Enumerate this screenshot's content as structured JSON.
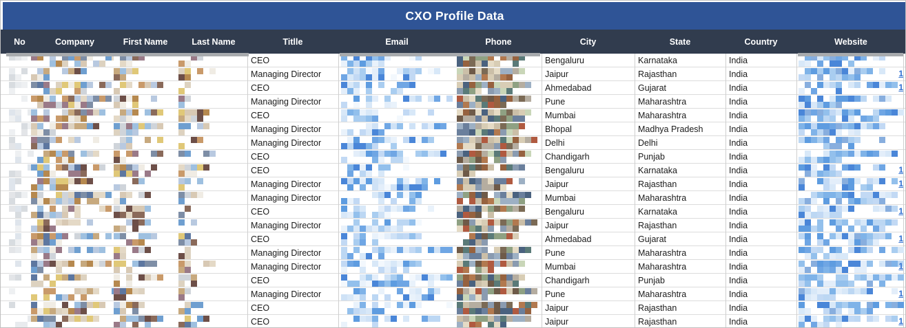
{
  "banner": {
    "title": "CXO Profile Data"
  },
  "theme": {
    "banner_bg": "#2f5496",
    "header_bg": "#313c4e",
    "header_text": "#ffffff",
    "grid_line": "#dcdcdc",
    "column_line": "#cfcfcf",
    "link_color": "#2e6fd2",
    "redact_bar": "#a8abae"
  },
  "columns": [
    {
      "key": "no",
      "label": "No"
    },
    {
      "key": "company",
      "label": "Company"
    },
    {
      "key": "first_name",
      "label": "First Name"
    },
    {
      "key": "last_name",
      "label": "Last Name"
    },
    {
      "key": "title",
      "label": "Titlle"
    },
    {
      "key": "email",
      "label": "Email"
    },
    {
      "key": "phone",
      "label": "Phone"
    },
    {
      "key": "city",
      "label": "City"
    },
    {
      "key": "state",
      "label": "State"
    },
    {
      "key": "country",
      "label": "Country"
    },
    {
      "key": "website",
      "label": "Website"
    }
  ],
  "redacted_columns": [
    "no",
    "company",
    "first_name",
    "last_name",
    "email",
    "phone",
    "website"
  ],
  "website_tail_glyph": "1",
  "rows": [
    {
      "title": "CEO",
      "city": "Bengaluru",
      "state": "Karnataka",
      "country": "India",
      "website_tail": false
    },
    {
      "title": "Managing Director",
      "city": "Jaipur",
      "state": "Rajasthan",
      "country": "India",
      "website_tail": true
    },
    {
      "title": "CEO",
      "city": "Ahmedabad",
      "state": "Gujarat",
      "country": "India",
      "website_tail": true
    },
    {
      "title": "Managing Director",
      "city": "Pune",
      "state": "Maharashtra",
      "country": "India",
      "website_tail": false
    },
    {
      "title": "CEO",
      "city": "Mumbai",
      "state": "Maharashtra",
      "country": "India",
      "website_tail": false
    },
    {
      "title": "Managing Director",
      "city": "Bhopal",
      "state": "Madhya Pradesh",
      "country": "India",
      "website_tail": false
    },
    {
      "title": "Managing Director",
      "city": "Delhi",
      "state": "Delhi",
      "country": "India",
      "website_tail": false
    },
    {
      "title": "CEO",
      "city": "Chandigarh",
      "state": "Punjab",
      "country": "India",
      "website_tail": false
    },
    {
      "title": "CEO",
      "city": "Bengaluru",
      "state": "Karnataka",
      "country": "India",
      "website_tail": true
    },
    {
      "title": "Managing Director",
      "city": "Jaipur",
      "state": "Rajasthan",
      "country": "India",
      "website_tail": true
    },
    {
      "title": "Managing Director",
      "city": "Mumbai",
      "state": "Maharashtra",
      "country": "India",
      "website_tail": false
    },
    {
      "title": "CEO",
      "city": "Bengaluru",
      "state": "Karnataka",
      "country": "India",
      "website_tail": true
    },
    {
      "title": "Managing Director",
      "city": "Jaipur",
      "state": "Rajasthan",
      "country": "India",
      "website_tail": false
    },
    {
      "title": "CEO",
      "city": "Ahmedabad",
      "state": "Gujarat",
      "country": "India",
      "website_tail": true
    },
    {
      "title": "Managing Director",
      "city": "Pune",
      "state": "Maharashtra",
      "country": "India",
      "website_tail": false
    },
    {
      "title": "Managing Director",
      "city": "Mumbai",
      "state": "Maharashtra",
      "country": "India",
      "website_tail": true
    },
    {
      "title": "CEO",
      "city": "Chandigarh",
      "state": "Punjab",
      "country": "India",
      "website_tail": false
    },
    {
      "title": "Managing Director",
      "city": "Pune",
      "state": "Maharashtra",
      "country": "India",
      "website_tail": true
    },
    {
      "title": "CEO",
      "city": "Jaipur",
      "state": "Rajasthan",
      "country": "India",
      "website_tail": false
    },
    {
      "title": "CEO",
      "city": "Jaipur",
      "state": "Rajasthan",
      "country": "India",
      "website_tail": true
    }
  ]
}
